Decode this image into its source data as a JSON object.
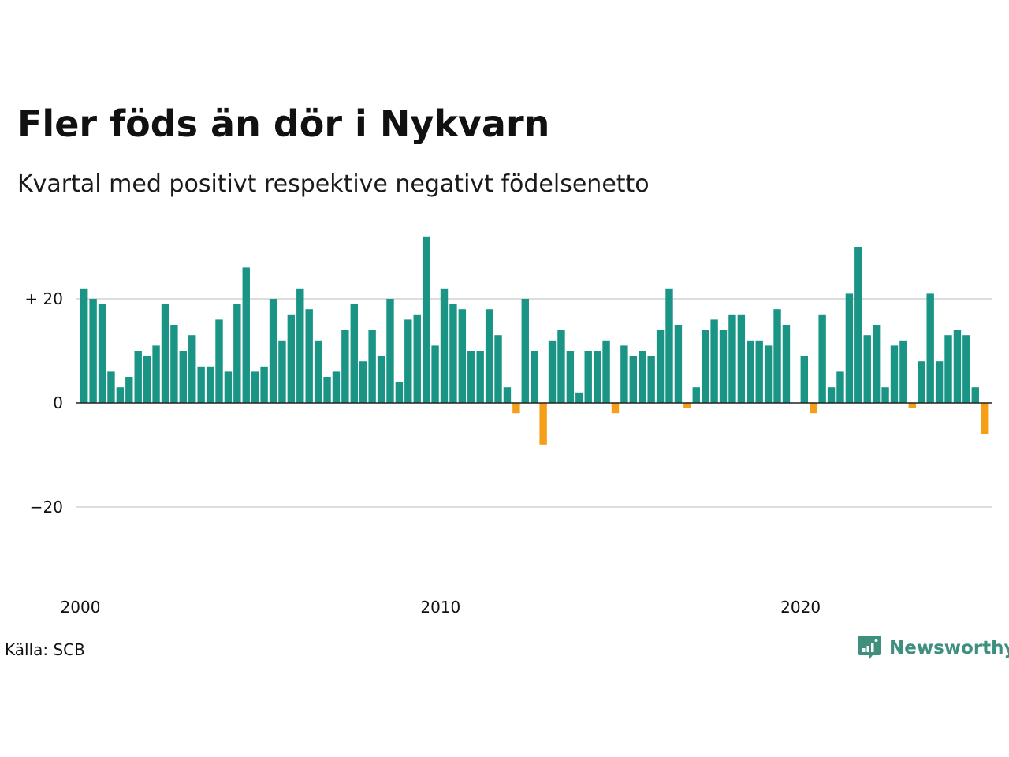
{
  "title": "Fler föds än dör i Nykvarn",
  "subtitle": "Kvartal med positivt respektive negativt födelsenetto",
  "source": "Källa: SCB",
  "brand": "Newsworthy",
  "colors": {
    "positive": "#1a9485",
    "negative": "#f59e17",
    "grid": "#dddddd",
    "baseline": "#222222",
    "brand": "#3f8f7f"
  },
  "chart_data": {
    "type": "bar",
    "ylim": [
      -34,
      34
    ],
    "yticks": [
      {
        "value": 20,
        "label": "+ 20"
      },
      {
        "value": 0,
        "label": "0"
      },
      {
        "value": -20,
        "label": "−20"
      }
    ],
    "xticks": [
      {
        "value": 2000,
        "label": "2000"
      },
      {
        "value": 2010,
        "label": "2010"
      },
      {
        "value": 2020,
        "label": "2020"
      }
    ],
    "grid": true,
    "start_year": 2000,
    "periods_per_year": 4,
    "values": [
      22,
      20,
      19,
      6,
      3,
      5,
      10,
      9,
      11,
      19,
      15,
      10,
      13,
      7,
      7,
      16,
      6,
      19,
      26,
      6,
      7,
      20,
      12,
      17,
      22,
      18,
      12,
      5,
      6,
      14,
      19,
      8,
      14,
      9,
      20,
      4,
      16,
      17,
      32,
      11,
      22,
      19,
      18,
      10,
      10,
      18,
      13,
      3,
      -2,
      20,
      10,
      -8,
      12,
      14,
      10,
      2,
      10,
      10,
      12,
      -2,
      11,
      9,
      10,
      9,
      14,
      22,
      15,
      -1,
      3,
      14,
      16,
      14,
      17,
      17,
      12,
      12,
      11,
      18,
      15,
      0,
      9,
      -2,
      17,
      3,
      6,
      21,
      30,
      13,
      15,
      3,
      11,
      12,
      -1,
      8,
      21,
      8,
      13,
      14,
      13,
      3,
      -6
    ]
  }
}
